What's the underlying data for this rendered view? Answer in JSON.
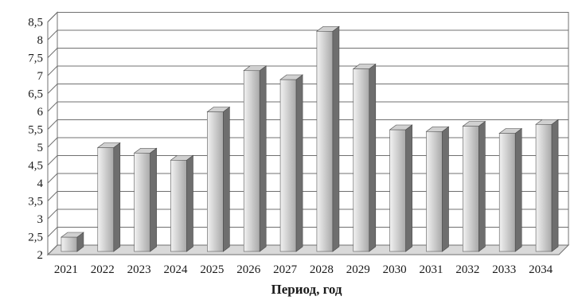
{
  "chart_data": {
    "type": "bar",
    "title": "",
    "xlabel": "Период, год",
    "ylabel": "",
    "ylim": [
      2,
      8.5
    ],
    "yticks": [
      "2",
      "2,5",
      "3",
      "3,5",
      "4",
      "4,5",
      "5",
      "5,5",
      "6",
      "6,5",
      "7",
      "7,5",
      "8",
      "8,5"
    ],
    "categories": [
      "2021",
      "2022",
      "2023",
      "2024",
      "2025",
      "2026",
      "2027",
      "2028",
      "2029",
      "2030",
      "2031",
      "2032",
      "2033",
      "2034"
    ],
    "values": [
      2.4,
      4.9,
      4.75,
      4.55,
      5.9,
      7.05,
      6.8,
      8.15,
      7.1,
      5.4,
      5.35,
      5.5,
      5.3,
      5.55
    ],
    "grid": true,
    "style": "3d",
    "colors": {
      "bar_front_light": "#f2f2f2",
      "bar_front_dark": "#a8a8a8",
      "bar_side": "#6e6e6e",
      "bar_top": "#d0d0d0",
      "grid": "#707070",
      "wall": "#ffffff"
    }
  }
}
